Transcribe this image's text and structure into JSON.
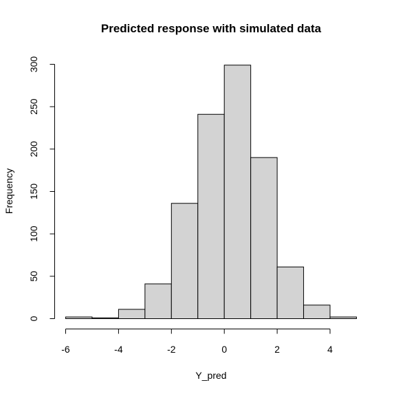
{
  "chart_data": {
    "type": "bar",
    "subtype": "histogram",
    "title": "Predicted response with simulated data",
    "xlabel": "Y_pred",
    "ylabel": "Frequency",
    "bin_edges": [
      -6,
      -5,
      -4,
      -3,
      -2,
      -1,
      0,
      1,
      2,
      3,
      4,
      5
    ],
    "values": [
      2,
      1,
      11,
      41,
      136,
      241,
      299,
      190,
      61,
      16,
      2
    ],
    "xlim": [
      -6,
      5
    ],
    "ylim": [
      0,
      300
    ],
    "x_ticks": [
      -6,
      -4,
      -2,
      0,
      2,
      4
    ],
    "y_ticks": [
      0,
      50,
      100,
      150,
      200,
      250,
      300
    ],
    "bar_fill": "#d3d3d3",
    "bar_stroke": "#000000",
    "grid": false,
    "legend": "none"
  }
}
